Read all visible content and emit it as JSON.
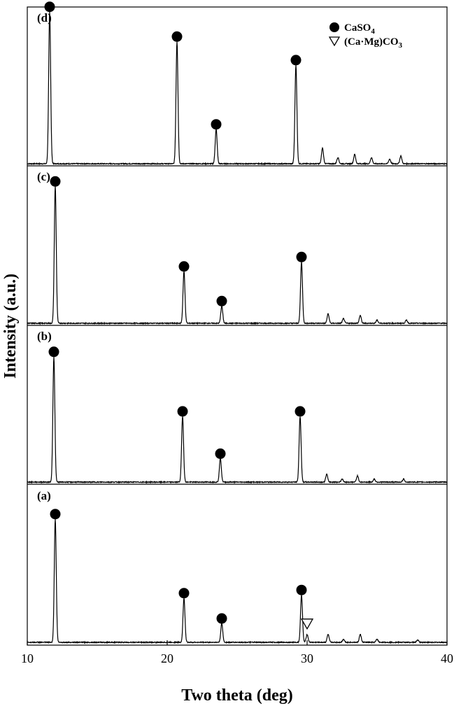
{
  "chart_data": {
    "type": "line",
    "xlabel": "Two theta (deg)",
    "ylabel": "Intensity (a.u.)",
    "xlim": [
      10,
      40
    ],
    "xticks": [
      10,
      20,
      30,
      40
    ],
    "xtick_labels": [
      "10",
      "20",
      "30",
      "40"
    ],
    "grid": false,
    "legend_position": "top-right",
    "legend": [
      {
        "marker": "filled-circle",
        "label": "CaSO",
        "subscript": "4"
      },
      {
        "marker": "open-triangle-down",
        "label": "(Ca·Mg)CO",
        "subscript": "3"
      }
    ],
    "panels": [
      {
        "label": "(d)",
        "peaks": [
          {
            "x": 11.6,
            "h": 0.97,
            "m": "circle"
          },
          {
            "x": 20.7,
            "h": 0.78,
            "m": "circle"
          },
          {
            "x": 23.5,
            "h": 0.22,
            "m": "circle"
          },
          {
            "x": 29.2,
            "h": 0.63,
            "m": "circle"
          },
          {
            "x": 31.1,
            "h": 0.1
          },
          {
            "x": 32.2,
            "h": 0.04
          },
          {
            "x": 33.4,
            "h": 0.06
          },
          {
            "x": 34.6,
            "h": 0.04
          },
          {
            "x": 35.9,
            "h": 0.03
          },
          {
            "x": 36.7,
            "h": 0.05
          }
        ]
      },
      {
        "label": "(c)",
        "peaks": [
          {
            "x": 12.0,
            "h": 0.87,
            "m": "circle"
          },
          {
            "x": 21.2,
            "h": 0.33,
            "m": "circle"
          },
          {
            "x": 23.9,
            "h": 0.11,
            "m": "circle"
          },
          {
            "x": 29.6,
            "h": 0.39,
            "m": "circle"
          },
          {
            "x": 31.5,
            "h": 0.06
          },
          {
            "x": 32.6,
            "h": 0.03
          },
          {
            "x": 33.8,
            "h": 0.05
          },
          {
            "x": 35.0,
            "h": 0.02
          },
          {
            "x": 37.1,
            "h": 0.02
          }
        ]
      },
      {
        "label": "(b)",
        "peaks": [
          {
            "x": 11.9,
            "h": 0.8,
            "m": "circle"
          },
          {
            "x": 21.1,
            "h": 0.42,
            "m": "circle"
          },
          {
            "x": 23.8,
            "h": 0.15,
            "m": "circle"
          },
          {
            "x": 29.5,
            "h": 0.42,
            "m": "circle"
          },
          {
            "x": 31.4,
            "h": 0.05
          },
          {
            "x": 32.5,
            "h": 0.02
          },
          {
            "x": 33.6,
            "h": 0.04
          },
          {
            "x": 34.8,
            "h": 0.02
          },
          {
            "x": 36.9,
            "h": 0.02
          }
        ]
      },
      {
        "label": "(a)",
        "peaks": [
          {
            "x": 12.0,
            "h": 0.78,
            "m": "circle"
          },
          {
            "x": 21.2,
            "h": 0.28,
            "m": "circle"
          },
          {
            "x": 23.9,
            "h": 0.12,
            "m": "circle"
          },
          {
            "x": 29.6,
            "h": 0.3,
            "m": "circle"
          },
          {
            "x": 30.0,
            "h": 0.05,
            "m": "triangle"
          },
          {
            "x": 31.5,
            "h": 0.05
          },
          {
            "x": 32.6,
            "h": 0.02
          },
          {
            "x": 33.8,
            "h": 0.05
          },
          {
            "x": 35.0,
            "h": 0.02
          },
          {
            "x": 37.9,
            "h": 0.015
          }
        ]
      }
    ]
  }
}
